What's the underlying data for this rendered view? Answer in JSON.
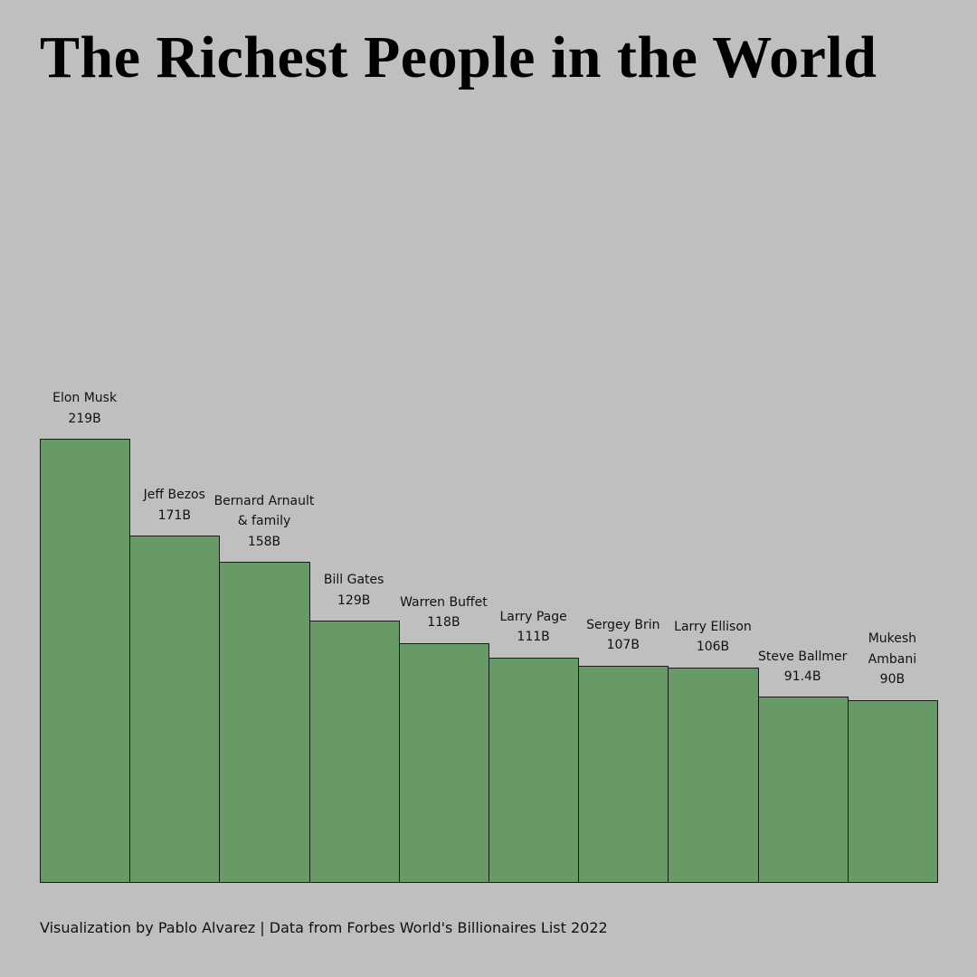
{
  "chart_data": {
    "type": "bar",
    "title": "The Richest People in the World",
    "footer": "Visualization by Pablo Alvarez | Data from Forbes World's Billionaires List 2022",
    "categories": [
      "Elon Musk",
      "Jeff Bezos",
      "Bernard Arnault\n& family",
      "Bill Gates",
      "Warren Buffet",
      "Larry Page",
      "Sergey Brin",
      "Larry Ellison",
      "Steve Ballmer",
      "Mukesh\nAmbani"
    ],
    "values": [
      219,
      171,
      158,
      129,
      118,
      111,
      107,
      106,
      91.4,
      90
    ],
    "value_labels": [
      "219B",
      "171B",
      "158B",
      "129B",
      "118B",
      "111B",
      "107B",
      "106B",
      "91.4B",
      "90B"
    ],
    "color": "#679a67"
  }
}
